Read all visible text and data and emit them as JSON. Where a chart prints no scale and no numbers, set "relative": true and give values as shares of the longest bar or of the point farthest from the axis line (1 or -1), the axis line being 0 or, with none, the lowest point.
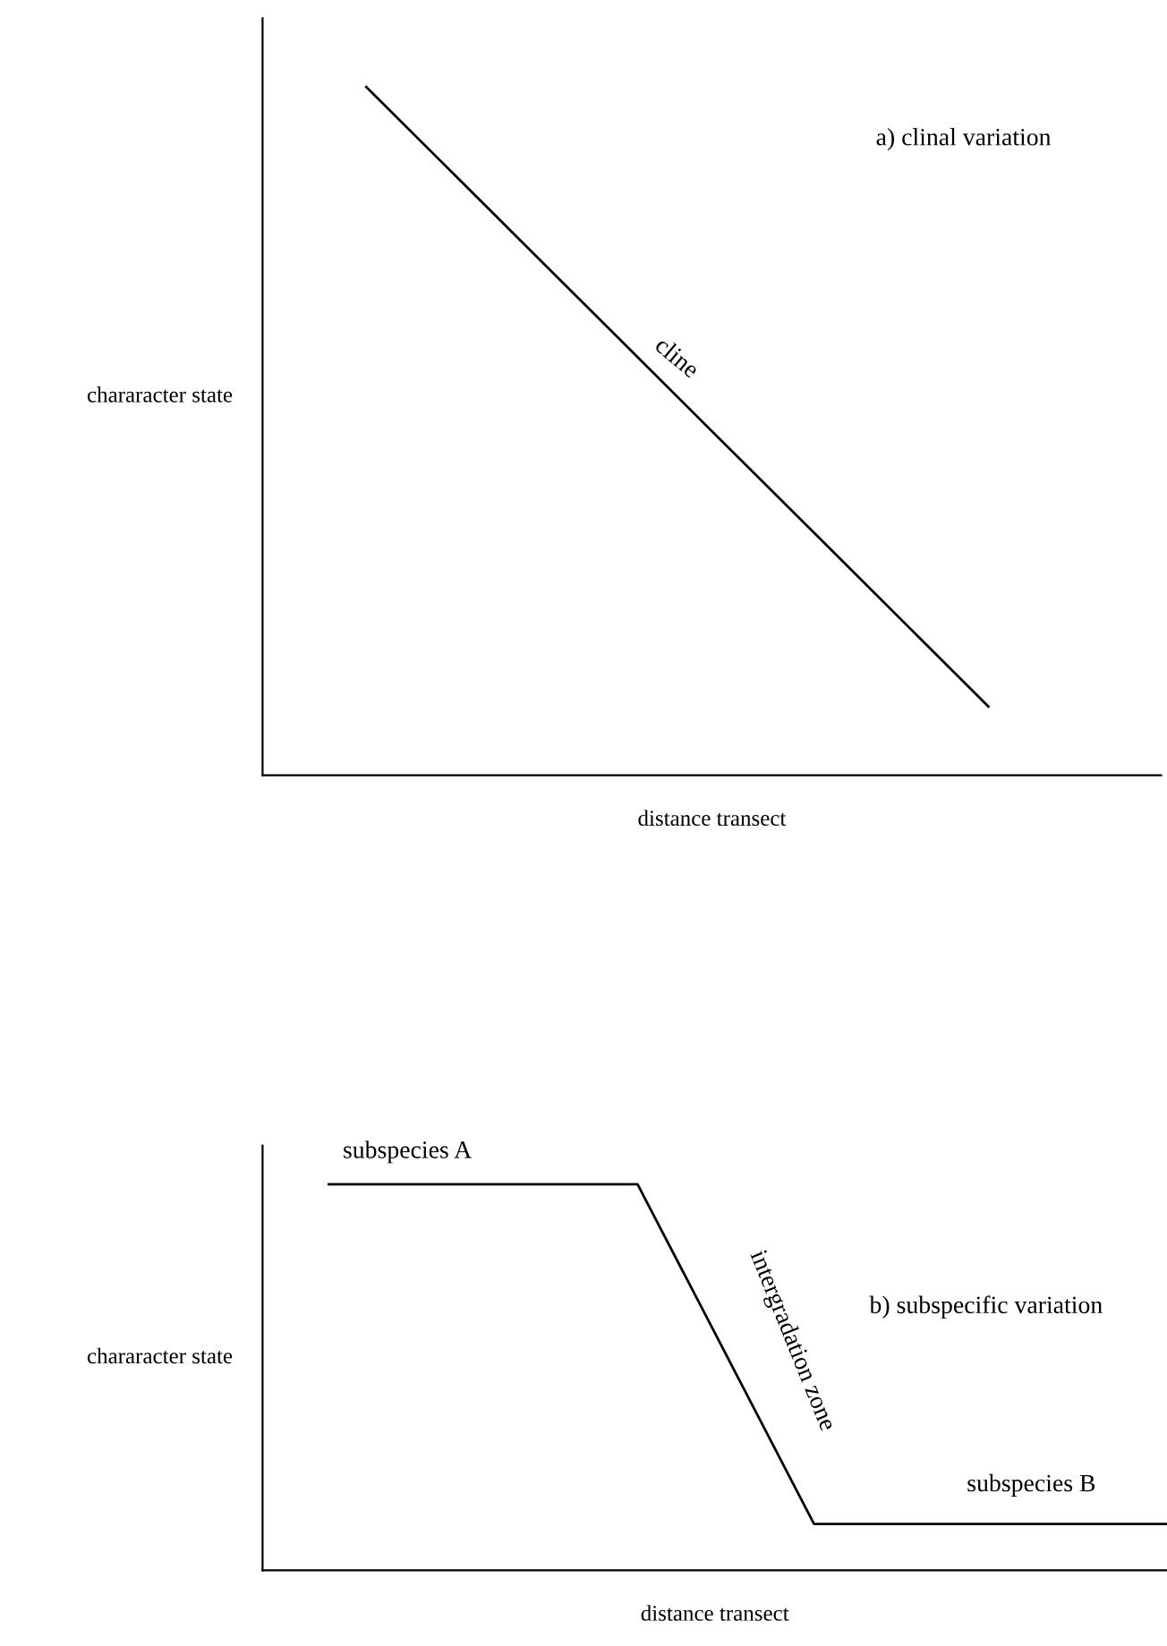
{
  "chart_data": [
    {
      "type": "line",
      "relative": true,
      "xlabel": "distance transect",
      "ylabel": "chararacter state",
      "tick_labels": false,
      "marker": "none",
      "line_style": "solid",
      "categories": [
        null,
        null,
        null,
        null,
        null,
        null,
        null,
        null,
        null,
        null,
        null,
        null,
        null
      ],
      "series": [
        {
          "color": "#000000",
          "values": [
            null,
            1,
            0.9,
            0.8,
            0.7,
            0.6,
            0.5,
            0.4,
            0.3,
            0.2,
            0.1,
            null,
            null
          ]
        }
      ],
      "annotations": [
        "a) clinal variation",
        "cline"
      ]
    },
    {
      "type": "line",
      "relative": true,
      "xlabel": "distance transect",
      "ylabel": "chararacter state",
      "tick_labels": false,
      "marker": "none",
      "line_style": "solid",
      "categories": [
        null,
        null,
        null,
        null,
        null,
        null,
        null,
        null,
        null,
        null,
        null,
        null,
        null,
        null,
        null,
        null,
        null,
        null,
        null,
        null,
        null,
        null,
        null,
        null,
        null,
        null,
        null,
        null,
        null,
        null,
        null,
        null,
        null,
        null,
        null,
        null,
        null,
        null,
        null,
        null,
        null
      ],
      "series": [
        {
          "color": "#000000",
          "values": [
            null,
            null,
            1,
            1,
            1,
            1,
            1,
            1,
            1,
            1,
            1,
            1,
            1,
            1,
            1,
            1,
            1,
            0.89,
            0.78,
            0.67,
            0.56,
            0.45,
            0.34,
            0.23,
            0.12,
            0.12,
            0.12,
            0.12,
            0.12,
            0.12,
            0.12,
            0.12,
            0.12,
            0.12,
            0.12,
            0.12,
            0.12,
            0.12,
            0.12,
            0.12,
            0.12
          ]
        }
      ],
      "annotations": [
        "subspecies A",
        "b) subspecific variation",
        "intergradation zone",
        "subspecies B"
      ]
    }
  ]
}
